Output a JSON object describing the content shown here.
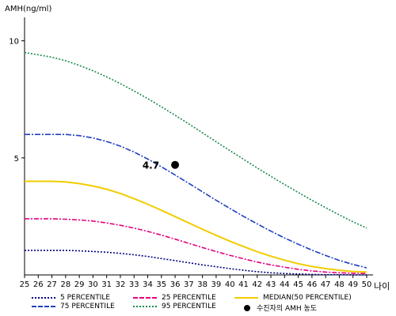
{
  "chart_data": {
    "type": "line",
    "ylabel": "AMH(ng/ml)",
    "xlabel": "나이",
    "x": [
      25,
      26,
      27,
      28,
      29,
      30,
      31,
      32,
      33,
      34,
      35,
      36,
      37,
      38,
      39,
      40,
      41,
      42,
      43,
      44,
      45,
      46,
      47,
      48,
      49,
      50
    ],
    "xlim": [
      25,
      50
    ],
    "ylim": [
      0,
      11
    ],
    "yticks": [
      5,
      10
    ],
    "series": [
      {
        "name": "5 PERCENTILE",
        "color": "#000080",
        "dash": "2,2",
        "values": [
          1.05,
          1.05,
          1.05,
          1.05,
          1.03,
          1.0,
          0.97,
          0.92,
          0.86,
          0.79,
          0.7,
          0.61,
          0.52,
          0.43,
          0.35,
          0.27,
          0.2,
          0.14,
          0.09,
          0.06,
          0.04,
          0.02,
          0.01,
          0.01,
          0.0,
          0.0
        ]
      },
      {
        "name": "25 PERCENTILE",
        "color": "#e6007e",
        "dash": "6,2,2,2",
        "values": [
          2.4,
          2.4,
          2.4,
          2.38,
          2.35,
          2.3,
          2.22,
          2.12,
          2.0,
          1.86,
          1.7,
          1.53,
          1.35,
          1.17,
          1.0,
          0.84,
          0.69,
          0.55,
          0.43,
          0.33,
          0.24,
          0.17,
          0.12,
          0.09,
          0.07,
          0.06
        ]
      },
      {
        "name": "MEDIAN(50 PERCENTILE)",
        "color": "#f2cc00",
        "dash": "",
        "values": [
          4.0,
          4.0,
          4.0,
          3.97,
          3.9,
          3.8,
          3.66,
          3.48,
          3.26,
          3.02,
          2.76,
          2.49,
          2.22,
          1.95,
          1.69,
          1.44,
          1.21,
          0.99,
          0.8,
          0.63,
          0.48,
          0.36,
          0.27,
          0.2,
          0.15,
          0.12
        ]
      },
      {
        "name": "75 PERCENTILE",
        "color": "#2040c0",
        "dash": "7,2,2,2",
        "values": [
          6.0,
          6.0,
          6.0,
          6.0,
          5.95,
          5.85,
          5.7,
          5.5,
          5.25,
          4.95,
          4.62,
          4.27,
          3.91,
          3.55,
          3.19,
          2.84,
          2.5,
          2.18,
          1.87,
          1.58,
          1.31,
          1.06,
          0.83,
          0.62,
          0.45,
          0.3
        ]
      },
      {
        "name": "95 PERCENTILE",
        "color": "#1a8a4a",
        "dash": "2,2",
        "values": [
          9.5,
          9.4,
          9.3,
          9.15,
          8.95,
          8.72,
          8.46,
          8.17,
          7.86,
          7.53,
          7.18,
          6.82,
          6.45,
          6.07,
          5.69,
          5.31,
          4.94,
          4.57,
          4.21,
          3.86,
          3.52,
          3.19,
          2.87,
          2.56,
          2.27,
          2.0
        ]
      }
    ],
    "marker": {
      "label": "수진자의 AMH 농도",
      "x": 36,
      "y": 4.7,
      "value_label": "4.7"
    }
  }
}
